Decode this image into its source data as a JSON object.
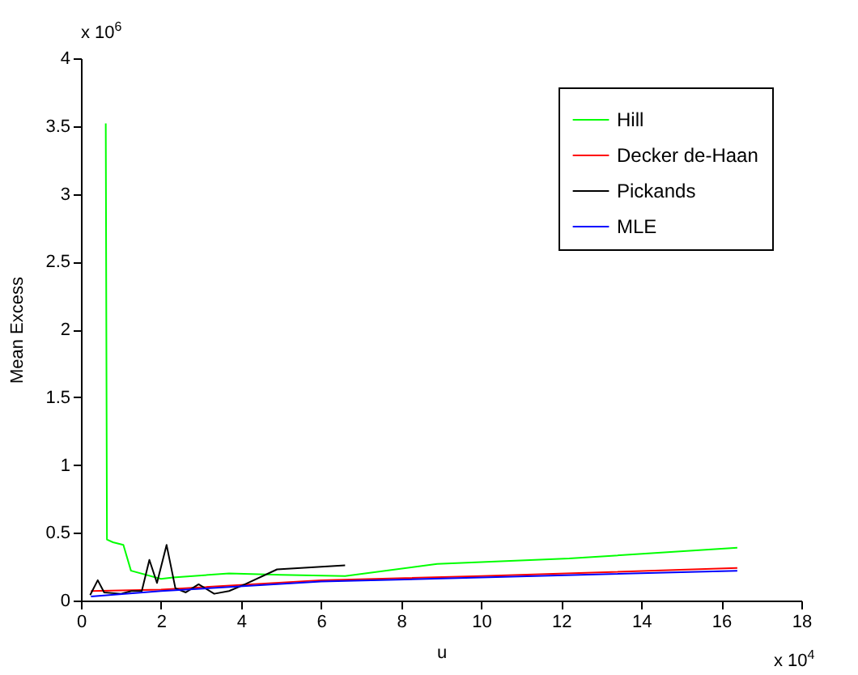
{
  "chart_data": {
    "type": "line",
    "xlabel": "u",
    "ylabel": "Mean Excess",
    "annotations": [
      "x 10$^{6}$",
      "x 10$^{4}$"
    ],
    "xlim": [
      0,
      18
    ],
    "xticks": [
      0,
      2,
      4,
      6,
      8,
      10,
      12,
      14,
      16,
      18
    ],
    "ylim": [
      0,
      4
    ],
    "yticks": [
      0,
      0.5,
      1,
      1.5,
      2,
      2.5,
      3,
      3.5,
      4
    ],
    "grid": false,
    "legend": "top right",
    "marker": "none",
    "line_style": "solid",
    "series": [
      {
        "name": "Hill",
        "color": "#00ff00",
        "x": [
          0.62,
          0.65,
          0.8,
          1.06,
          1.25,
          2.0,
          2.3,
          3.7,
          5.0,
          6.6,
          8.9,
          12.2,
          16.4
        ],
        "values": [
          3.52,
          0.45,
          0.43,
          0.41,
          0.22,
          0.16,
          0.17,
          0.2,
          0.19,
          0.18,
          0.27,
          0.31,
          0.39
        ]
      },
      {
        "name": "Decker de-Haan",
        "color": "#ff0000",
        "x": [
          0.25,
          2,
          6,
          10,
          16.4
        ],
        "values": [
          0.07,
          0.08,
          0.15,
          0.18,
          0.24
        ]
      },
      {
        "name": "Pickands",
        "color": "#000000",
        "x": [
          0.23,
          0.42,
          0.58,
          1.0,
          1.26,
          1.52,
          1.71,
          1.9,
          2.14,
          2.36,
          2.62,
          2.94,
          3.33,
          3.7,
          4.1,
          4.9,
          6.6
        ],
        "values": [
          0.04,
          0.15,
          0.06,
          0.05,
          0.07,
          0.07,
          0.3,
          0.13,
          0.41,
          0.09,
          0.06,
          0.12,
          0.05,
          0.07,
          0.12,
          0.23,
          0.26
        ]
      },
      {
        "name": "MLE",
        "color": "#0000ff",
        "x": [
          0.25,
          2,
          6,
          10,
          16.4
        ],
        "values": [
          0.03,
          0.07,
          0.14,
          0.17,
          0.22
        ]
      }
    ]
  }
}
